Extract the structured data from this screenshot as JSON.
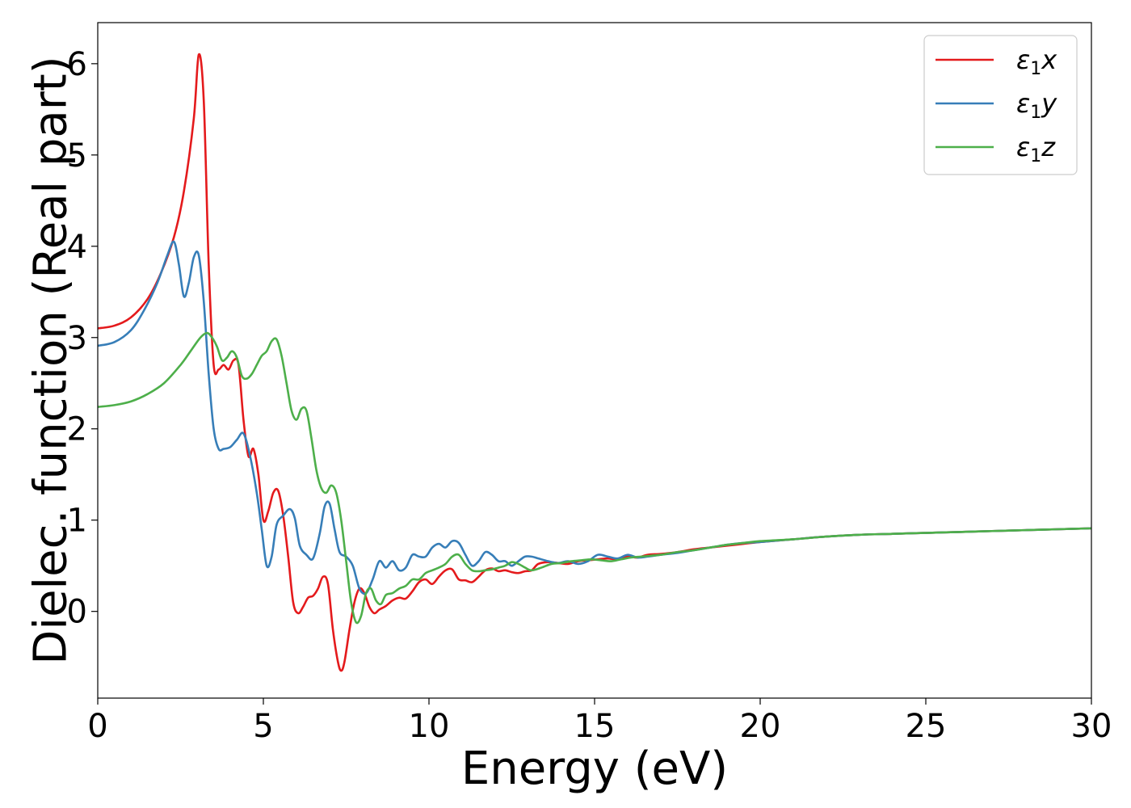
{
  "chart_data": {
    "type": "line",
    "title": "",
    "xlabel": "Energy (eV)",
    "ylabel": "Dielec. function (Real part)",
    "xlim": [
      0,
      30
    ],
    "ylim": [
      -0.95,
      6.45
    ],
    "xticks": [
      0,
      5,
      10,
      15,
      20,
      25,
      30
    ],
    "yticks": [
      0,
      1,
      2,
      3,
      4,
      5,
      6
    ],
    "grid": false,
    "legend_position": "top-right",
    "series": [
      {
        "name": "ε₁x",
        "legend_base": "ε",
        "legend_sub": "1",
        "legend_suffix": "x",
        "color": "#e41a1c",
        "x": [
          0,
          0.5,
          1.0,
          1.5,
          1.9,
          2.3,
          2.6,
          2.9,
          3.05,
          3.2,
          3.35,
          3.5,
          3.65,
          3.8,
          3.95,
          4.1,
          4.25,
          4.4,
          4.55,
          4.7,
          4.85,
          5.0,
          5.15,
          5.3,
          5.45,
          5.6,
          5.75,
          5.9,
          6.05,
          6.2,
          6.35,
          6.5,
          6.65,
          6.8,
          6.95,
          7.1,
          7.25,
          7.35,
          7.45,
          7.6,
          7.75,
          7.9,
          8.05,
          8.2,
          8.35,
          8.5,
          8.7,
          8.9,
          9.1,
          9.3,
          9.5,
          9.7,
          9.9,
          10.1,
          10.3,
          10.5,
          10.7,
          10.9,
          11.1,
          11.3,
          11.5,
          11.7,
          11.9,
          12.1,
          12.3,
          12.5,
          12.7,
          12.9,
          13.1,
          13.3,
          13.6,
          13.9,
          14.2,
          14.5,
          14.8,
          15.1,
          15.4,
          15.7,
          16.0,
          16.3,
          16.6,
          17.0,
          17.5,
          18.0,
          18.5,
          19.0,
          19.5,
          20.0,
          21.0,
          22.0,
          23.0,
          24.0,
          25.0,
          26.0,
          27.0,
          28.0,
          29.0,
          30.0
        ],
        "y": [
          3.1,
          3.13,
          3.22,
          3.42,
          3.7,
          4.1,
          4.6,
          5.4,
          6.1,
          5.6,
          3.8,
          2.7,
          2.65,
          2.7,
          2.65,
          2.75,
          2.7,
          2.1,
          1.7,
          1.78,
          1.5,
          1.0,
          1.1,
          1.3,
          1.32,
          1.05,
          0.6,
          0.1,
          -0.02,
          0.05,
          0.15,
          0.17,
          0.25,
          0.38,
          0.3,
          -0.2,
          -0.55,
          -0.65,
          -0.55,
          -0.2,
          0.1,
          0.25,
          0.2,
          0.05,
          -0.02,
          0.02,
          0.06,
          0.12,
          0.15,
          0.14,
          0.22,
          0.32,
          0.35,
          0.3,
          0.38,
          0.45,
          0.46,
          0.35,
          0.34,
          0.32,
          0.38,
          0.45,
          0.47,
          0.44,
          0.45,
          0.43,
          0.42,
          0.44,
          0.45,
          0.52,
          0.54,
          0.53,
          0.52,
          0.55,
          0.56,
          0.57,
          0.58,
          0.57,
          0.6,
          0.59,
          0.62,
          0.63,
          0.65,
          0.68,
          0.7,
          0.72,
          0.74,
          0.76,
          0.79,
          0.82,
          0.84,
          0.85,
          0.86,
          0.87,
          0.88,
          0.89,
          0.9,
          0.91
        ]
      },
      {
        "name": "ε₁y",
        "legend_base": "ε",
        "legend_sub": "1",
        "legend_suffix": "y",
        "color": "#377eb8",
        "x": [
          0,
          0.5,
          1.0,
          1.4,
          1.8,
          2.1,
          2.3,
          2.45,
          2.6,
          2.75,
          2.9,
          3.05,
          3.2,
          3.35,
          3.5,
          3.65,
          3.8,
          4.0,
          4.2,
          4.4,
          4.6,
          4.8,
          4.95,
          5.1,
          5.25,
          5.4,
          5.6,
          5.8,
          5.95,
          6.1,
          6.3,
          6.5,
          6.7,
          6.85,
          7.0,
          7.15,
          7.3,
          7.5,
          7.7,
          7.9,
          8.1,
          8.3,
          8.5,
          8.7,
          8.9,
          9.1,
          9.3,
          9.5,
          9.7,
          9.9,
          10.1,
          10.3,
          10.5,
          10.7,
          10.9,
          11.1,
          11.3,
          11.5,
          11.7,
          11.9,
          12.1,
          12.3,
          12.5,
          12.7,
          12.9,
          13.1,
          13.3,
          13.6,
          13.9,
          14.2,
          14.5,
          14.8,
          15.1,
          15.4,
          15.7,
          16.0,
          16.3,
          16.6,
          17.0,
          17.5,
          18.0,
          18.5,
          19.0,
          19.5,
          20.0,
          21.0,
          22.0,
          23.0,
          24.0,
          25.0,
          26.0,
          27.0,
          28.0,
          29.0,
          30.0
        ],
        "y": [
          2.91,
          2.95,
          3.08,
          3.3,
          3.6,
          3.9,
          4.05,
          3.8,
          3.45,
          3.6,
          3.88,
          3.9,
          3.4,
          2.6,
          2.0,
          1.78,
          1.78,
          1.8,
          1.88,
          1.95,
          1.7,
          1.3,
          0.9,
          0.5,
          0.6,
          0.95,
          1.05,
          1.12,
          1.02,
          0.72,
          0.62,
          0.58,
          0.85,
          1.15,
          1.18,
          0.9,
          0.65,
          0.6,
          0.5,
          0.25,
          0.2,
          0.35,
          0.55,
          0.48,
          0.55,
          0.45,
          0.48,
          0.62,
          0.6,
          0.6,
          0.7,
          0.74,
          0.7,
          0.77,
          0.75,
          0.62,
          0.5,
          0.55,
          0.65,
          0.62,
          0.55,
          0.55,
          0.5,
          0.55,
          0.6,
          0.6,
          0.58,
          0.55,
          0.53,
          0.55,
          0.52,
          0.55,
          0.62,
          0.6,
          0.58,
          0.62,
          0.59,
          0.6,
          0.62,
          0.64,
          0.67,
          0.7,
          0.73,
          0.75,
          0.76,
          0.79,
          0.82,
          0.84,
          0.85,
          0.86,
          0.87,
          0.88,
          0.89,
          0.9,
          0.91
        ]
      },
      {
        "name": "ε₁z",
        "legend_base": "ε",
        "legend_sub": "1",
        "legend_suffix": "z",
        "color": "#4daf4a",
        "x": [
          0,
          0.5,
          1.0,
          1.5,
          2.0,
          2.5,
          2.8,
          3.1,
          3.3,
          3.45,
          3.6,
          3.75,
          3.9,
          4.05,
          4.2,
          4.35,
          4.5,
          4.65,
          4.8,
          4.95,
          5.1,
          5.25,
          5.4,
          5.55,
          5.7,
          5.85,
          6.0,
          6.15,
          6.3,
          6.45,
          6.6,
          6.75,
          6.9,
          7.05,
          7.2,
          7.35,
          7.5,
          7.65,
          7.8,
          7.95,
          8.1,
          8.25,
          8.4,
          8.55,
          8.7,
          8.9,
          9.1,
          9.3,
          9.5,
          9.7,
          9.9,
          10.1,
          10.3,
          10.5,
          10.7,
          10.9,
          11.1,
          11.3,
          11.5,
          11.7,
          11.9,
          12.1,
          12.3,
          12.5,
          12.7,
          12.9,
          13.1,
          13.4,
          13.7,
          14.0,
          14.3,
          14.6,
          14.9,
          15.2,
          15.5,
          15.8,
          16.1,
          16.4,
          16.7,
          17.0,
          17.5,
          18.0,
          18.5,
          19.0,
          19.5,
          20.0,
          21.0,
          22.0,
          23.0,
          24.0,
          25.0,
          26.0,
          27.0,
          28.0,
          29.0,
          30.0
        ],
        "y": [
          2.24,
          2.26,
          2.3,
          2.38,
          2.5,
          2.7,
          2.85,
          3.0,
          3.05,
          3.0,
          2.9,
          2.75,
          2.78,
          2.85,
          2.78,
          2.58,
          2.55,
          2.6,
          2.7,
          2.8,
          2.85,
          2.96,
          2.98,
          2.8,
          2.5,
          2.2,
          2.1,
          2.22,
          2.2,
          1.9,
          1.55,
          1.35,
          1.3,
          1.38,
          1.3,
          1.0,
          0.55,
          0.1,
          -0.12,
          -0.05,
          0.2,
          0.25,
          0.12,
          0.08,
          0.18,
          0.2,
          0.25,
          0.28,
          0.35,
          0.35,
          0.42,
          0.45,
          0.48,
          0.52,
          0.6,
          0.62,
          0.52,
          0.45,
          0.44,
          0.45,
          0.46,
          0.48,
          0.5,
          0.54,
          0.52,
          0.48,
          0.45,
          0.48,
          0.52,
          0.53,
          0.55,
          0.56,
          0.57,
          0.56,
          0.55,
          0.57,
          0.59,
          0.6,
          0.61,
          0.62,
          0.65,
          0.67,
          0.7,
          0.73,
          0.75,
          0.77,
          0.79,
          0.82,
          0.84,
          0.85,
          0.86,
          0.87,
          0.88,
          0.89,
          0.9,
          0.91
        ]
      }
    ]
  }
}
